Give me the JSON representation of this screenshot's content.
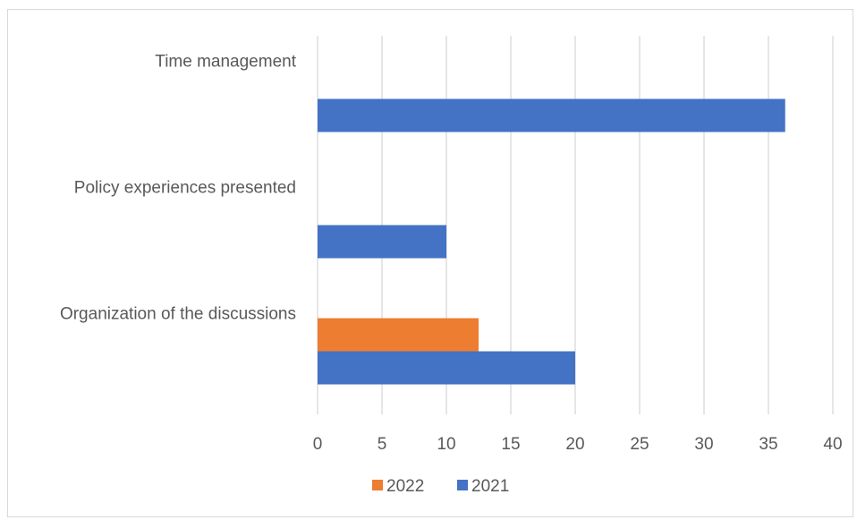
{
  "chart_data": {
    "type": "bar",
    "orientation": "horizontal",
    "title": "",
    "xlabel": "",
    "ylabel": "",
    "categories": [
      "Organization of the discussions",
      "Policy experiences presented",
      "Time management"
    ],
    "series": [
      {
        "name": "2022",
        "color": "#ED7D31",
        "values": [
          12.5,
          0,
          0
        ]
      },
      {
        "name": "2021",
        "color": "#4472C4",
        "values": [
          20,
          10,
          36.3
        ]
      }
    ],
    "xlim": [
      0,
      40
    ],
    "xticks": [
      "0",
      "5",
      "10",
      "15",
      "20",
      "25",
      "30",
      "35",
      "40"
    ],
    "grid": true,
    "legend_position": "bottom",
    "gridline_color": "#d9d9d9"
  }
}
